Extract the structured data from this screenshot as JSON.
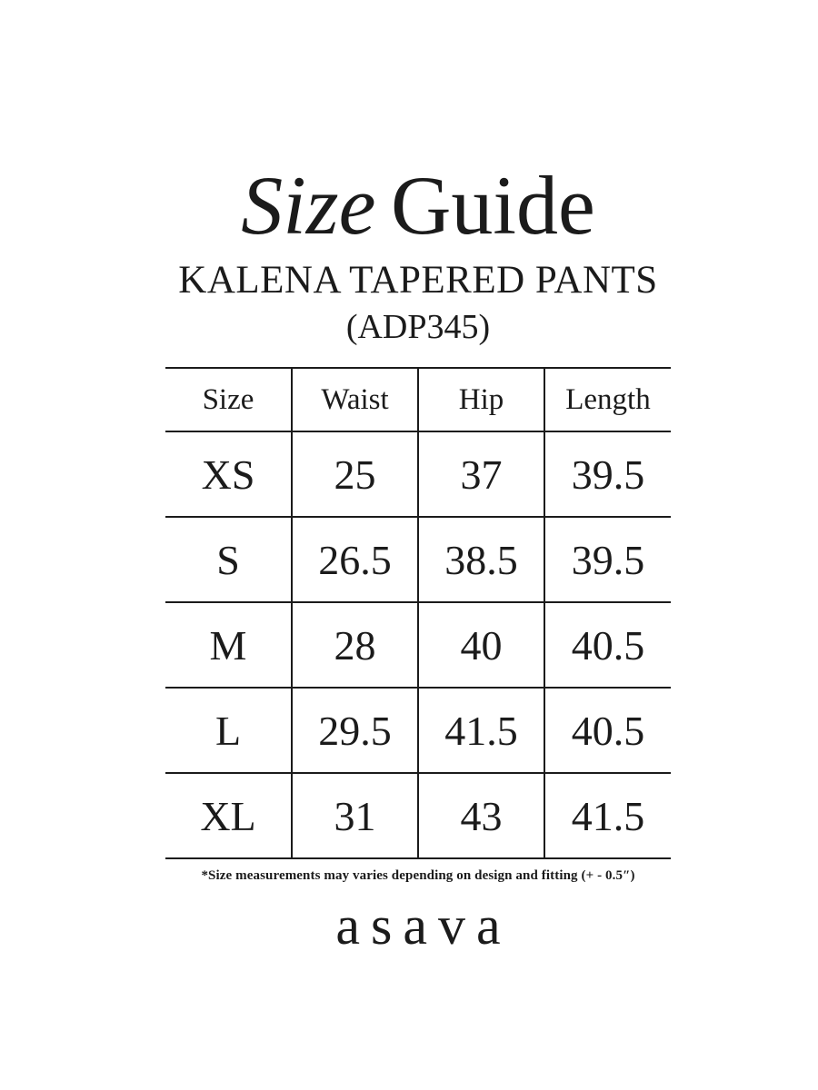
{
  "page": {
    "title_italic": "Size",
    "title_regular": "Guide",
    "product_name": "KALENA TAPERED PANTS",
    "product_code": "(ADP345)",
    "footnote": "*Size measurements may varies depending on design and fitting (+ - 0.5″)",
    "brand": "asava"
  },
  "size_table": {
    "columns": [
      "Size",
      "Waist",
      "Hip",
      "Length"
    ],
    "rows": [
      {
        "cells": [
          "XS",
          "25",
          "37",
          "39.5"
        ]
      },
      {
        "cells": [
          "S",
          "26.5",
          "38.5",
          "39.5"
        ]
      },
      {
        "cells": [
          "M",
          "28",
          "40",
          "40.5"
        ]
      },
      {
        "cells": [
          "L",
          "29.5",
          "41.5",
          "40.5"
        ]
      },
      {
        "cells": [
          "XL",
          "31",
          "43",
          "41.5"
        ]
      }
    ]
  },
  "colors": {
    "text": "#1b1b1b",
    "background": "#ffffff",
    "table_lines": "#1b1b1b"
  }
}
